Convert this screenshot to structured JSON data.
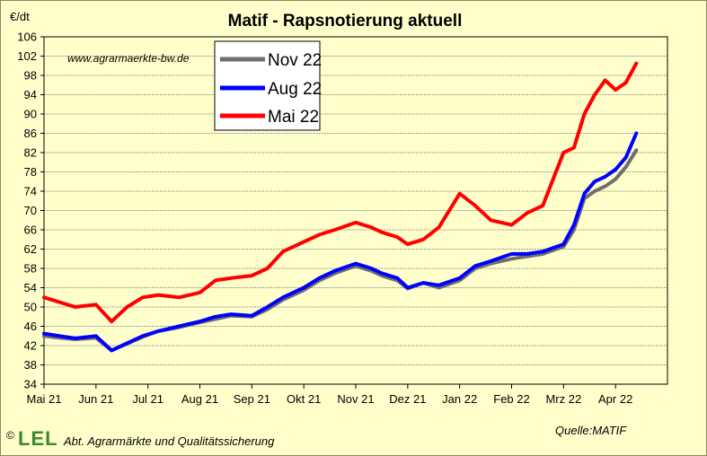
{
  "colors": {
    "background": "#ffffcc",
    "plot_background": "#ffffcc",
    "grid": "#808080",
    "nov22": "#6e6e6e",
    "aug22": "#0000ff",
    "mai22": "#ff0000",
    "logo_green": "#3a8a2a"
  },
  "unit_label": "€/dt",
  "watermark": "www.agrarmaerkte-bw.de",
  "source": "Quelle:MATIF",
  "copyright": "©",
  "logo_text": "LEL",
  "org": "Abt. Agrarmärkte und Qualitätssicherung",
  "chart_data": {
    "type": "line",
    "title": "Matif - Rapsnotierung aktuell",
    "xlabel": "",
    "ylabel": "€/dt",
    "ylim": [
      34,
      106
    ],
    "y_ticks": [
      34,
      38,
      42,
      46,
      50,
      54,
      58,
      62,
      66,
      70,
      74,
      78,
      82,
      86,
      90,
      94,
      98,
      102,
      106
    ],
    "x_ticks": [
      "Mai 21",
      "Jun 21",
      "Jul 21",
      "Aug 21",
      "Sep 21",
      "Okt 21",
      "Nov 21",
      "Dez 21",
      "Jan 22",
      "Feb 22",
      "Mrz 22",
      "Apr 22"
    ],
    "x_unit": "months since Mai 21",
    "grid": "horizontal",
    "legend_position": "top-left",
    "series": [
      {
        "name": "Nov 22",
        "color": "#6e6e6e",
        "x": [
          0.0,
          0.3,
          0.6,
          1.0,
          1.3,
          1.6,
          1.9,
          2.2,
          2.6,
          3.0,
          3.3,
          3.6,
          4.0,
          4.3,
          4.6,
          5.0,
          5.3,
          5.6,
          6.0,
          6.3,
          6.5,
          6.8,
          7.0,
          7.3,
          7.6,
          8.0,
          8.3,
          8.6,
          9.0,
          9.3,
          9.6,
          10.0,
          10.2,
          10.4,
          10.6,
          10.8,
          11.0,
          11.2,
          11.4
        ],
        "y": [
          44.0,
          43.6,
          43.3,
          43.6,
          41.0,
          42.4,
          43.8,
          45.0,
          45.8,
          46.8,
          47.5,
          48.2,
          48.0,
          49.5,
          51.5,
          53.5,
          55.5,
          57.0,
          58.5,
          57.5,
          56.5,
          55.5,
          53.8,
          55.0,
          54.0,
          55.5,
          58.0,
          59.0,
          60.0,
          60.5,
          61.0,
          62.5,
          66.0,
          72.5,
          74.0,
          75.0,
          76.5,
          79.0,
          82.5
        ]
      },
      {
        "name": "Aug 22",
        "color": "#0000ff",
        "x": [
          0.0,
          0.3,
          0.6,
          1.0,
          1.3,
          1.6,
          1.9,
          2.2,
          2.6,
          3.0,
          3.3,
          3.6,
          4.0,
          4.3,
          4.6,
          5.0,
          5.3,
          5.6,
          6.0,
          6.3,
          6.5,
          6.8,
          7.0,
          7.3,
          7.6,
          8.0,
          8.3,
          8.6,
          9.0,
          9.3,
          9.6,
          10.0,
          10.2,
          10.4,
          10.6,
          10.8,
          11.0,
          11.2,
          11.4
        ],
        "y": [
          44.5,
          44.0,
          43.5,
          44.0,
          41.0,
          42.5,
          44.0,
          45.0,
          46.0,
          47.0,
          48.0,
          48.5,
          48.2,
          50.0,
          52.0,
          54.0,
          56.0,
          57.5,
          59.0,
          58.0,
          57.0,
          56.0,
          54.0,
          55.0,
          54.5,
          56.0,
          58.5,
          59.5,
          61.0,
          61.0,
          61.5,
          63.0,
          67.0,
          73.5,
          76.0,
          77.0,
          78.5,
          81.0,
          86.0
        ]
      },
      {
        "name": "Mai 22",
        "color": "#ff0000",
        "x": [
          0.0,
          0.3,
          0.6,
          1.0,
          1.3,
          1.6,
          1.9,
          2.2,
          2.6,
          3.0,
          3.3,
          3.6,
          4.0,
          4.3,
          4.6,
          5.0,
          5.3,
          5.6,
          6.0,
          6.3,
          6.5,
          6.8,
          7.0,
          7.3,
          7.6,
          8.0,
          8.3,
          8.6,
          9.0,
          9.3,
          9.6,
          10.0,
          10.2,
          10.4,
          10.6,
          10.8,
          11.0,
          11.2,
          11.4
        ],
        "y": [
          52.0,
          51.0,
          50.0,
          50.5,
          47.0,
          50.0,
          52.0,
          52.5,
          52.0,
          53.0,
          55.5,
          56.0,
          56.5,
          58.0,
          61.5,
          63.5,
          65.0,
          66.0,
          67.5,
          66.5,
          65.5,
          64.5,
          63.0,
          64.0,
          66.5,
          73.5,
          71.0,
          68.0,
          67.0,
          69.5,
          71.0,
          82.0,
          83.0,
          90.0,
          94.0,
          97.0,
          95.0,
          96.5,
          100.5
        ]
      }
    ]
  }
}
